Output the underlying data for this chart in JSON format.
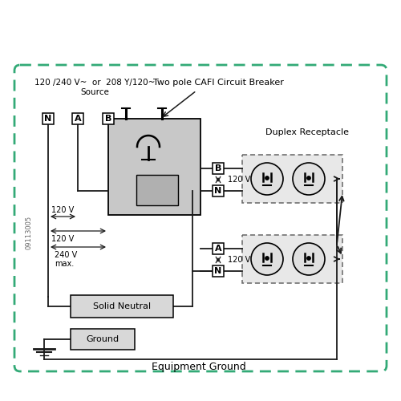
{
  "bg_color": "#ffffff",
  "border_color": "#33aa77",
  "lc": "#1a1a1a",
  "gray_fill": "#c8c8c8",
  "light_gray": "#e0e0e0",
  "box_fill": "#d8d8d8",
  "source_line1": "120 /240 V~  or  208 Y/120~",
  "source_line2": "Source",
  "breaker_label": "Two pole CAFI Circuit Breaker",
  "duplex_label": "Duplex Receptacle",
  "eq_ground_label": "Equipment Ground",
  "solid_neutral_label": "Solid Neutral",
  "ground_label": "Ground",
  "code": "09113005",
  "v120": "120 V",
  "v240": "240 V",
  "max_label": "max."
}
